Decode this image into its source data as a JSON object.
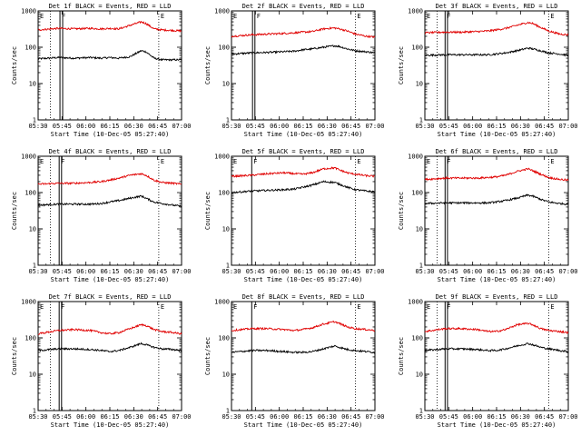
{
  "figure": {
    "ylabel": "Counts/sec",
    "xlabel": "Start Time (10-Dec-05 05:27:40)",
    "x_ticks": [
      "05:30",
      "05:45",
      "06:00",
      "06:15",
      "06:30",
      "06:45",
      "07:00"
    ],
    "y_ticks": [
      "1",
      "10",
      "100",
      "1000"
    ],
    "marker_labels": [
      "E",
      "F",
      "E"
    ],
    "colors": {
      "events": "#000000",
      "lld": "#e00000"
    }
  },
  "chart_data": [
    {
      "type": "line",
      "title": "Det 1f BLACK = Events, RED = LLD",
      "xlabel": "Start Time (10-Dec-05 05:27:40)",
      "ylabel": "Counts/sec",
      "yscale": "log",
      "ylim": [
        1,
        1000
      ],
      "xlim_minutes": [
        2.3,
        92.3
      ],
      "series": [
        {
          "name": "Events",
          "color": "#000000",
          "x": [
            2.3,
            15,
            25,
            35,
            42,
            47,
            53,
            60,
            67,
            70,
            75,
            80,
            87,
            92
          ],
          "y": [
            48,
            52,
            50,
            52,
            50,
            52,
            50,
            55,
            80,
            75,
            50,
            45,
            45,
            45
          ]
        },
        {
          "name": "LLD",
          "color": "#e00000",
          "x": [
            2.3,
            15,
            25,
            35,
            42,
            47,
            53,
            60,
            67,
            70,
            75,
            80,
            87,
            92
          ],
          "y": [
            300,
            330,
            320,
            330,
            320,
            330,
            320,
            400,
            500,
            450,
            320,
            300,
            290,
            280
          ]
        }
      ],
      "vlines_minutes": [
        10,
        16,
        17.7,
        78
      ],
      "vlines_style": [
        "dotted",
        "solid",
        "solid",
        "dotted"
      ]
    },
    {
      "type": "line",
      "title": "Det 2f BLACK = Events, RED = LLD",
      "xlabel": "Start Time (10-Dec-05 05:27:40)",
      "ylabel": "Counts/sec",
      "yscale": "log",
      "ylim": [
        1,
        1000
      ],
      "xlim_minutes": [
        2.3,
        92.3
      ],
      "series": [
        {
          "name": "Events",
          "color": "#000000",
          "x": [
            2.3,
            15,
            25,
            35,
            42,
            47,
            53,
            60,
            67,
            70,
            75,
            80,
            87,
            92
          ],
          "y": [
            65,
            70,
            72,
            75,
            78,
            85,
            90,
            100,
            110,
            105,
            90,
            80,
            75,
            70
          ]
        },
        {
          "name": "LLD",
          "color": "#e00000",
          "x": [
            2.3,
            15,
            25,
            35,
            42,
            47,
            53,
            60,
            67,
            70,
            75,
            80,
            87,
            92
          ],
          "y": [
            200,
            220,
            230,
            240,
            250,
            260,
            270,
            320,
            340,
            320,
            280,
            230,
            200,
            190
          ]
        }
      ],
      "vlines_minutes": [
        15.5,
        17,
        80
      ],
      "vlines_style": [
        "solid",
        "solid",
        "dotted"
      ]
    },
    {
      "type": "line",
      "title": "Det 3f BLACK = Events, RED = LLD",
      "xlabel": "Start Time (10-Dec-05 05:27:40)",
      "ylabel": "Counts/sec",
      "yscale": "log",
      "ylim": [
        1,
        1000
      ],
      "xlim_minutes": [
        2.3,
        92.3
      ],
      "series": [
        {
          "name": "Events",
          "color": "#000000",
          "x": [
            2.3,
            15,
            25,
            35,
            42,
            47,
            53,
            60,
            67,
            70,
            75,
            80,
            87,
            92
          ],
          "y": [
            60,
            62,
            62,
            62,
            62,
            65,
            70,
            80,
            95,
            90,
            80,
            70,
            65,
            60
          ]
        },
        {
          "name": "LLD",
          "color": "#e00000",
          "x": [
            2.3,
            15,
            25,
            35,
            42,
            47,
            53,
            60,
            67,
            70,
            75,
            80,
            87,
            92
          ],
          "y": [
            250,
            260,
            260,
            270,
            280,
            300,
            330,
            400,
            480,
            450,
            350,
            280,
            230,
            220
          ]
        }
      ],
      "vlines_minutes": [
        10,
        15,
        16.5,
        80
      ],
      "vlines_style": [
        "dotted",
        "solid",
        "solid",
        "dotted"
      ]
    },
    {
      "type": "line",
      "title": "Det 4f BLACK = Events, RED = LLD",
      "xlabel": "Start Time (10-Dec-05 05:27:40)",
      "ylabel": "Counts/sec",
      "yscale": "log",
      "ylim": [
        1,
        1000
      ],
      "xlim_minutes": [
        2.3,
        92.3
      ],
      "series": [
        {
          "name": "Events",
          "color": "#000000",
          "x": [
            2.3,
            15,
            25,
            35,
            42,
            47,
            53,
            60,
            67,
            70,
            75,
            80,
            87,
            92
          ],
          "y": [
            45,
            48,
            48,
            48,
            50,
            55,
            60,
            70,
            80,
            70,
            55,
            50,
            45,
            42
          ]
        },
        {
          "name": "LLD",
          "color": "#e00000",
          "x": [
            2.3,
            15,
            25,
            35,
            42,
            47,
            53,
            60,
            67,
            70,
            75,
            80,
            87,
            92
          ],
          "y": [
            170,
            180,
            180,
            190,
            200,
            220,
            250,
            300,
            330,
            300,
            220,
            190,
            180,
            170
          ]
        }
      ],
      "vlines_minutes": [
        10,
        15.5,
        17,
        78
      ],
      "vlines_style": [
        "dotted",
        "solid",
        "solid",
        "dotted"
      ]
    },
    {
      "type": "line",
      "title": "Det 5f BLACK = Events, RED = LLD",
      "xlabel": "Start Time (10-Dec-05 05:27:40)",
      "ylabel": "Counts/sec",
      "yscale": "log",
      "ylim": [
        1,
        1000
      ],
      "xlim_minutes": [
        2.3,
        92.3
      ],
      "series": [
        {
          "name": "Events",
          "color": "#000000",
          "x": [
            2.3,
            15,
            25,
            35,
            42,
            47,
            53,
            60,
            67,
            70,
            75,
            80,
            87,
            92
          ],
          "y": [
            100,
            110,
            115,
            120,
            125,
            140,
            160,
            200,
            190,
            170,
            140,
            120,
            110,
            105
          ]
        },
        {
          "name": "LLD",
          "color": "#e00000",
          "x": [
            2.3,
            15,
            25,
            35,
            42,
            47,
            53,
            60,
            67,
            70,
            75,
            80,
            87,
            92
          ],
          "y": [
            280,
            300,
            330,
            350,
            330,
            320,
            350,
            450,
            480,
            420,
            350,
            320,
            290,
            280
          ]
        }
      ],
      "vlines_minutes": [
        15,
        80
      ],
      "vlines_style": [
        "solid",
        "dotted"
      ]
    },
    {
      "type": "line",
      "title": "Det 6f BLACK = Events, RED = LLD",
      "xlabel": "Start Time (10-Dec-05 05:27:40)",
      "ylabel": "Counts/sec",
      "yscale": "log",
      "ylim": [
        1,
        1000
      ],
      "xlim_minutes": [
        2.3,
        92.3
      ],
      "series": [
        {
          "name": "Events",
          "color": "#000000",
          "x": [
            2.3,
            15,
            25,
            35,
            42,
            47,
            53,
            60,
            67,
            70,
            75,
            80,
            87,
            92
          ],
          "y": [
            50,
            52,
            52,
            52,
            52,
            55,
            60,
            70,
            85,
            80,
            65,
            55,
            50,
            48
          ]
        },
        {
          "name": "LLD",
          "color": "#e00000",
          "x": [
            2.3,
            15,
            25,
            35,
            42,
            47,
            53,
            60,
            67,
            70,
            75,
            80,
            87,
            92
          ],
          "y": [
            230,
            250,
            250,
            250,
            260,
            270,
            300,
            380,
            450,
            400,
            320,
            260,
            230,
            220
          ]
        }
      ],
      "vlines_minutes": [
        10,
        15,
        16.5,
        80
      ],
      "vlines_style": [
        "dotted",
        "solid",
        "solid",
        "dotted"
      ]
    },
    {
      "type": "line",
      "title": "Det 7f BLACK = Events, RED = LLD",
      "xlabel": "Start Time (10-Dec-05 05:27:40)",
      "ylabel": "Counts/sec",
      "yscale": "log",
      "ylim": [
        1,
        1000
      ],
      "xlim_minutes": [
        2.3,
        92.3
      ],
      "series": [
        {
          "name": "Events",
          "color": "#000000",
          "x": [
            2.3,
            15,
            25,
            35,
            42,
            47,
            53,
            60,
            67,
            70,
            75,
            80,
            87,
            92
          ],
          "y": [
            45,
            50,
            50,
            48,
            45,
            42,
            45,
            55,
            70,
            65,
            55,
            50,
            48,
            45
          ]
        },
        {
          "name": "LLD",
          "color": "#e00000",
          "x": [
            2.3,
            15,
            25,
            35,
            42,
            47,
            53,
            60,
            67,
            70,
            75,
            80,
            87,
            92
          ],
          "y": [
            130,
            160,
            170,
            160,
            140,
            130,
            140,
            180,
            230,
            220,
            170,
            150,
            140,
            130
          ]
        }
      ],
      "vlines_minutes": [
        10,
        15.5,
        17,
        78
      ],
      "vlines_style": [
        "dotted",
        "solid",
        "solid",
        "dotted"
      ]
    },
    {
      "type": "line",
      "title": "Det 8f BLACK = Events, RED = LLD",
      "xlabel": "Start Time (10-Dec-05 05:27:40)",
      "ylabel": "Counts/sec",
      "yscale": "log",
      "ylim": [
        1,
        1000
      ],
      "xlim_minutes": [
        2.3,
        92.3
      ],
      "series": [
        {
          "name": "Events",
          "color": "#000000",
          "x": [
            2.3,
            15,
            25,
            35,
            42,
            47,
            53,
            60,
            67,
            70,
            75,
            80,
            87,
            92
          ],
          "y": [
            40,
            45,
            45,
            42,
            40,
            40,
            42,
            50,
            60,
            55,
            48,
            45,
            42,
            40
          ]
        },
        {
          "name": "LLD",
          "color": "#e00000",
          "x": [
            2.3,
            15,
            25,
            35,
            42,
            47,
            53,
            60,
            67,
            70,
            75,
            80,
            87,
            92
          ],
          "y": [
            160,
            180,
            180,
            170,
            160,
            170,
            190,
            240,
            280,
            250,
            200,
            180,
            170,
            160
          ]
        }
      ],
      "vlines_minutes": [
        15,
        80
      ],
      "vlines_style": [
        "solid",
        "dotted"
      ]
    },
    {
      "type": "line",
      "title": "Det 9f BLACK = Events, RED = LLD",
      "xlabel": "Start Time (10-Dec-05 05:27:40)",
      "ylabel": "Counts/sec",
      "yscale": "log",
      "ylim": [
        1,
        1000
      ],
      "xlim_minutes": [
        2.3,
        92.3
      ],
      "series": [
        {
          "name": "Events",
          "color": "#000000",
          "x": [
            2.3,
            15,
            25,
            35,
            42,
            47,
            53,
            60,
            67,
            70,
            75,
            80,
            87,
            92
          ],
          "y": [
            45,
            50,
            50,
            48,
            45,
            45,
            50,
            60,
            70,
            65,
            55,
            50,
            45,
            42
          ]
        },
        {
          "name": "LLD",
          "color": "#e00000",
          "x": [
            2.3,
            15,
            25,
            35,
            42,
            47,
            53,
            60,
            67,
            70,
            75,
            80,
            87,
            92
          ],
          "y": [
            150,
            180,
            180,
            170,
            150,
            150,
            170,
            230,
            250,
            230,
            180,
            160,
            150,
            140
          ]
        }
      ],
      "vlines_minutes": [
        10,
        15,
        16.5,
        80
      ],
      "vlines_style": [
        "dotted",
        "solid",
        "solid",
        "dotted"
      ]
    }
  ]
}
